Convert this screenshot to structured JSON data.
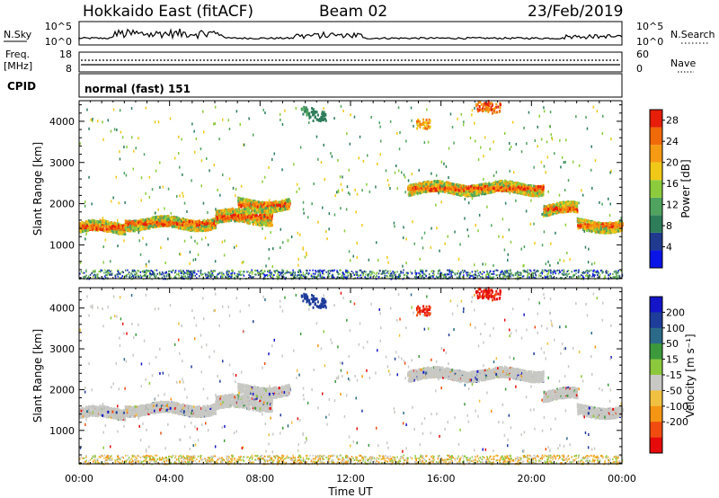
{
  "header": {
    "radar": "Hokkaido East (fitACF)",
    "beam": "Beam 02",
    "date": "23/Feb/2019"
  },
  "strip": {
    "nsky_label": "N.Sky",
    "nsky_ticks": [
      "10^5",
      "10^0"
    ],
    "nsearch_label": "N.Search",
    "nsearch_ticks": [
      "10^5",
      "10^0"
    ],
    "freq_label": "Freq.",
    "freq_unit": "[MHz]",
    "freq_ticks": [
      "18",
      "8"
    ],
    "nave_label": "Nave",
    "nave_ticks": [
      "60",
      "0"
    ],
    "cpid_label": "CPID",
    "cpid_value": "normal (fast) 151"
  },
  "colors": {
    "power_scale": [
      "#0a14e6",
      "#1f3a8f",
      "#2e7d5a",
      "#4fa35e",
      "#8ccc3c",
      "#f0c818",
      "#f59a12",
      "#f06a0a",
      "#e61e0a"
    ],
    "velocity_scale": [
      "#e60a0a",
      "#f04c10",
      "#f59514",
      "#f0c040",
      "#c8c8c4",
      "#8cc83c",
      "#3c9a3c",
      "#2c6a8a",
      "#1e3c9a",
      "#1414c8"
    ],
    "ground_scatter": "#c8c8c4"
  },
  "chart_data": [
    {
      "type": "heatmap",
      "panel": "power",
      "ylabel": "Slant Range [km]",
      "x_ticks": [
        "00:00",
        "04:00",
        "08:00",
        "12:00",
        "16:00",
        "20:00",
        "00:00"
      ],
      "y_ticks": [
        1000,
        2000,
        3000,
        4000
      ],
      "xlim_hours": [
        0,
        24
      ],
      "ylim_km": [
        180,
        4500
      ],
      "colorbar": {
        "label": "Power [dB]",
        "ticks": [
          4,
          8,
          12,
          16,
          20,
          24,
          28
        ],
        "range": [
          0,
          30
        ]
      },
      "scatter_bands": [
        {
          "from_h": 0,
          "to_h": 2,
          "km": 1450,
          "width_km": 250
        },
        {
          "from_h": 2,
          "to_h": 6,
          "km": 1550,
          "width_km": 250
        },
        {
          "from_h": 6,
          "to_h": 8.5,
          "km": 1700,
          "width_km": 300
        },
        {
          "from_h": 7,
          "to_h": 9.3,
          "km": 2000,
          "width_km": 250
        },
        {
          "from_h": 14.5,
          "to_h": 20.5,
          "km": 2400,
          "width_km": 250
        },
        {
          "from_h": 20.5,
          "to_h": 22,
          "km": 1900,
          "width_km": 250
        },
        {
          "from_h": 22,
          "to_h": 24,
          "km": 1500,
          "width_km": 250
        }
      ]
    },
    {
      "type": "heatmap",
      "panel": "velocity",
      "ylabel": "Slant Range [km]",
      "xlabel": "Time UT",
      "x_ticks": [
        "00:00",
        "04:00",
        "08:00",
        "12:00",
        "16:00",
        "20:00",
        "00:00"
      ],
      "y_ticks": [
        1000,
        2000,
        3000,
        4000
      ],
      "xlim_hours": [
        0,
        24
      ],
      "ylim_km": [
        180,
        4500
      ],
      "colorbar": {
        "label": "Velocity [m s⁻¹]",
        "ticks": [
          200,
          100,
          50,
          15,
          -15,
          -50,
          -100,
          -200
        ],
        "range": [
          -250,
          250
        ]
      },
      "ground_scatter": "grey"
    }
  ]
}
